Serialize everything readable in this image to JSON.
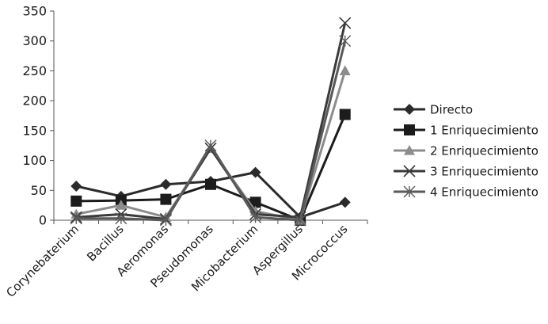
{
  "chart_data": {
    "type": "line",
    "title": "",
    "xlabel": "",
    "ylabel": "",
    "ylim": [
      0,
      350
    ],
    "yticks": [
      0,
      50,
      100,
      150,
      200,
      250,
      300,
      350
    ],
    "grid": false,
    "legend_position": "right",
    "categories": [
      "Corynebaterium",
      "Bacillus",
      "Aeromonas",
      "Pseudomonas",
      "Micobacterium",
      "Aspergillus",
      "Micrococcus"
    ],
    "series": [
      {
        "name": "Directo",
        "marker": "diamond",
        "color": "#2b2b2b",
        "values": [
          57,
          40,
          60,
          65,
          80,
          5,
          30
        ]
      },
      {
        "name": "1 Enriquecimiento",
        "marker": "square",
        "color": "#1c1c1c",
        "values": [
          32,
          33,
          35,
          60,
          30,
          0,
          177
        ]
      },
      {
        "name": "2 Enriquecimiento",
        "marker": "triangle",
        "color": "#8c8c8c",
        "values": [
          10,
          25,
          5,
          120,
          15,
          0,
          250
        ]
      },
      {
        "name": "3 Enriquecimiento",
        "marker": "x",
        "color": "#3a3a3a",
        "values": [
          5,
          10,
          2,
          120,
          10,
          5,
          330
        ]
      },
      {
        "name": "4 Enriquecimiento",
        "marker": "star",
        "color": "#5a5a5a",
        "values": [
          3,
          3,
          0,
          125,
          5,
          0,
          300
        ]
      }
    ]
  }
}
